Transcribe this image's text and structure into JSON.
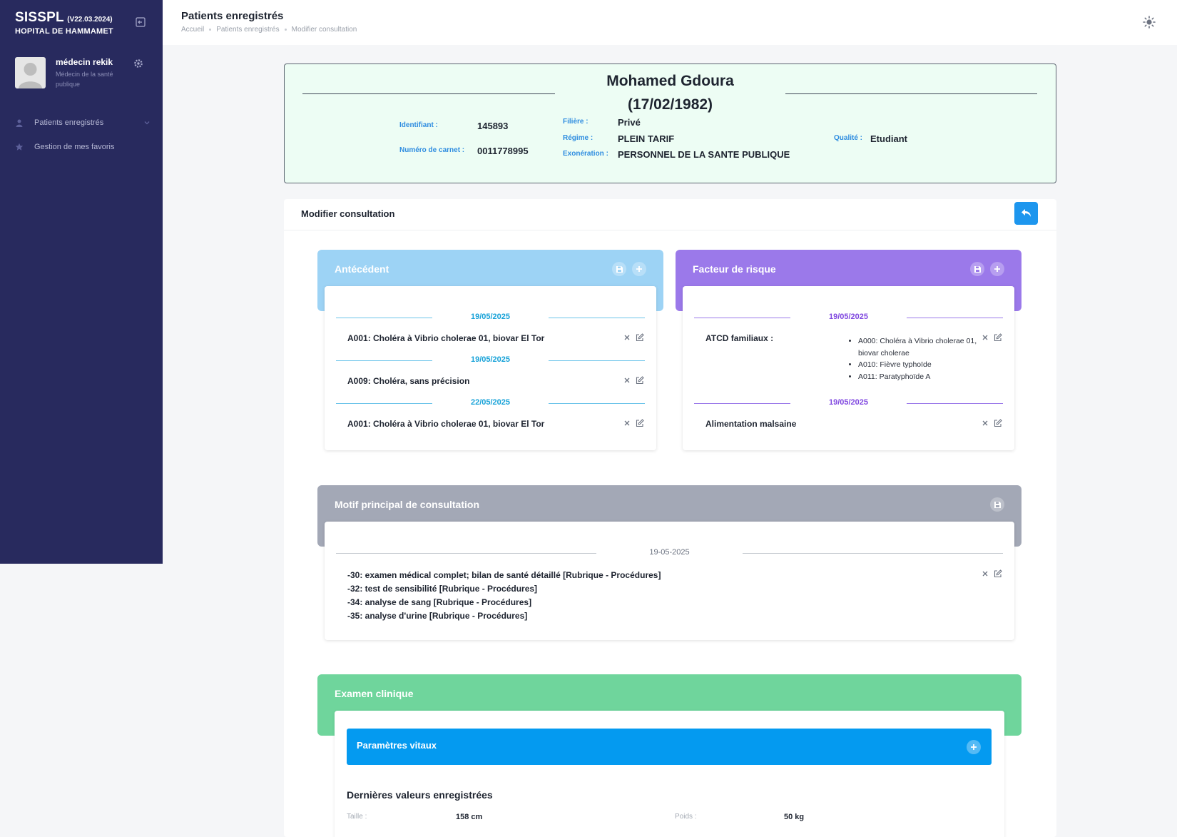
{
  "sidebar": {
    "brand": "SISSPL",
    "version": "(V22.03.2024)",
    "hospital": "HOPITAL DE HAMMAMET",
    "user_name": "médecin rekik",
    "user_role": "Médecin de la santé publique",
    "nav": [
      {
        "label": "Patients enregistrés",
        "icon": "user-icon"
      },
      {
        "label": "Gestion de mes favoris",
        "icon": "star-icon"
      }
    ]
  },
  "header": {
    "title": "Patients enregistrés",
    "breadcrumb": [
      "Accueil",
      "Patients enregistrés",
      "Modifier consultation"
    ]
  },
  "patient": {
    "name": "Mohamed Gdoura",
    "dob": "(17/02/1982)",
    "identifiant_label": "Identifiant :",
    "identifiant": "145893",
    "carnet_label": "Numéro de carnet :",
    "carnet": "0011778995",
    "filiere_label": "Filière :",
    "filiere": "Privé",
    "regime_label": "Régime :",
    "regime": "PLEIN TARIF",
    "exoneration_label": "Exonération :",
    "exoneration": "PERSONNEL DE LA SANTE PUBLIQUE",
    "qualite_label": "Qualité :",
    "qualite": "Etudiant"
  },
  "main": {
    "title": "Modifier consultation",
    "antecedent": {
      "title": "Antécédent",
      "color": "#9dd3f5",
      "entries": [
        {
          "date": "19/05/2025",
          "text": "A001: Choléra à Vibrio cholerae 01, biovar El Tor"
        },
        {
          "date": "19/05/2025",
          "text": "A009: Choléra, sans précision"
        },
        {
          "date": "22/05/2025",
          "text": "A001: Choléra à Vibrio cholerae 01, biovar El Tor"
        }
      ]
    },
    "facteur": {
      "title": "Facteur de risque",
      "color": "#9b79ea",
      "group1_date": "19/05/2025",
      "group1_label": "ATCD familiaux :",
      "group1_items": [
        "A000: Choléra à Vibrio cholerae 01, biovar cholerae",
        "A010: Fièvre typhoïde",
        "A011: Paratyphoïde A"
      ],
      "group2_date": "19/05/2025",
      "group2_label": "Alimentation malsaine"
    },
    "motif": {
      "title": "Motif principal de consultation",
      "color": "#a3a8b6",
      "date": "19-05-2025",
      "lines": [
        "-30: examen médical complet; bilan de santé détaillé [Rubrique - Procédures]",
        "-32: test de sensibilité [Rubrique - Procédures]",
        "-34: analyse de sang [Rubrique - Procédures]",
        "-35: analyse d'urine [Rubrique - Procédures]"
      ]
    },
    "examen": {
      "title": "Examen clinique",
      "color": "#6fd59c",
      "vitals_title": "Paramètres vitaux",
      "last_values_title": "Dernières valeurs enregistrées",
      "taille_label": "Taille :",
      "taille": "158 cm",
      "poids_label": "Poids :",
      "poids": "50 kg"
    }
  }
}
